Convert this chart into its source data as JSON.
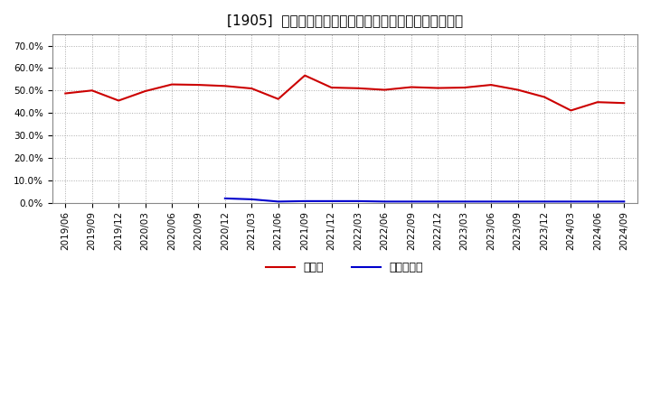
{
  "title": "[1905]  現頴金、有利子負債の総資産に対する比率の推移",
  "x_labels": [
    "2019/06",
    "2019/09",
    "2019/12",
    "2020/03",
    "2020/06",
    "2020/09",
    "2020/12",
    "2021/03",
    "2021/06",
    "2021/09",
    "2021/12",
    "2022/03",
    "2022/06",
    "2022/09",
    "2022/12",
    "2023/03",
    "2023/06",
    "2023/09",
    "2023/12",
    "2024/03",
    "2024/06",
    "2024/09"
  ],
  "cash_values": [
    0.487,
    0.5,
    0.455,
    0.497,
    0.527,
    0.525,
    0.52,
    0.509,
    0.462,
    0.567,
    0.513,
    0.51,
    0.503,
    0.515,
    0.511,
    0.513,
    0.525,
    0.503,
    0.471,
    0.411,
    0.448,
    0.444
  ],
  "debt_values": [
    null,
    null,
    null,
    null,
    null,
    null,
    0.019,
    0.015,
    0.005,
    0.007,
    0.007,
    0.007,
    0.005,
    0.005,
    0.005,
    0.005,
    0.005,
    0.005,
    0.005,
    0.005,
    0.005,
    0.005
  ],
  "cash_color": "#cc0000",
  "debt_color": "#0000cc",
  "background_color": "#ffffff",
  "plot_bg_color": "#ffffff",
  "grid_color": "#aaaaaa",
  "ylim": [
    0.0,
    0.75
  ],
  "yticks": [
    0.0,
    0.1,
    0.2,
    0.3,
    0.4,
    0.5,
    0.6,
    0.7
  ],
  "legend_cash": "現頴金",
  "legend_debt": "有利子負債",
  "title_fontsize": 11,
  "tick_fontsize": 7.5
}
